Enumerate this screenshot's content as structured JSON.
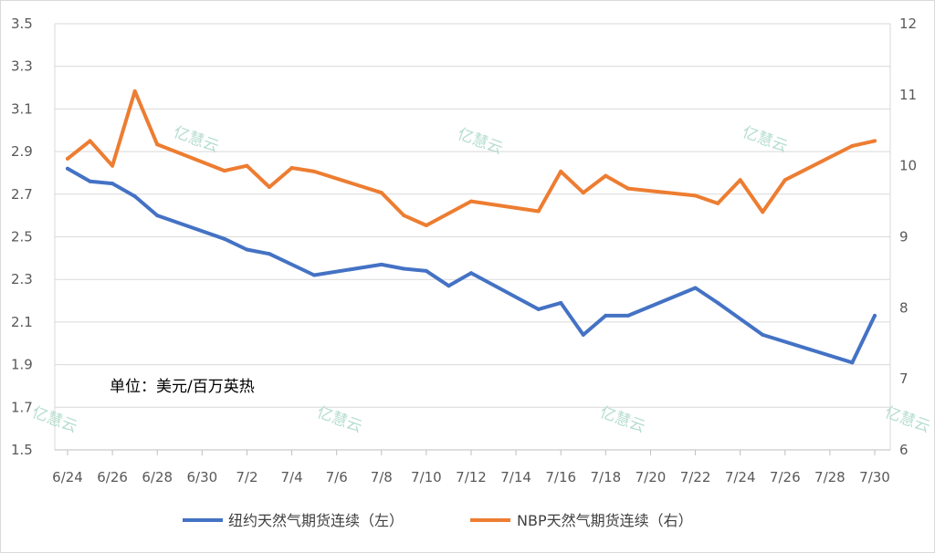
{
  "chart_data": {
    "type": "line",
    "annotation": "单位：美元/百万英热",
    "watermark_text": "亿慧云",
    "x_tick_labels": [
      "6/24",
      "6/26",
      "6/28",
      "6/30",
      "7/2",
      "7/4",
      "7/6",
      "7/8",
      "7/10",
      "7/12",
      "7/14",
      "7/16",
      "7/18",
      "7/20",
      "7/22",
      "7/24",
      "7/26",
      "7/28",
      "7/30"
    ],
    "y_left": {
      "ticks": [
        "1.5",
        "1.7",
        "1.9",
        "2.1",
        "2.3",
        "2.5",
        "2.7",
        "2.9",
        "3.1",
        "3.3",
        "3.5"
      ],
      "ylim": [
        1.5,
        3.5
      ]
    },
    "y_right": {
      "ticks": [
        "6",
        "7",
        "8",
        "9",
        "10",
        "11",
        "12"
      ],
      "ylim": [
        6,
        12
      ]
    },
    "x_range": [
      "6/24",
      "7/30"
    ],
    "series": [
      {
        "name": "纽约天然气期货连续（左）",
        "axis": "left",
        "color": "#4472c4",
        "x": [
          "6/24",
          "6/25",
          "6/26",
          "6/27",
          "6/28",
          "7/1",
          "7/2",
          "7/3",
          "7/5",
          "7/8",
          "7/9",
          "7/10",
          "7/11",
          "7/12",
          "7/15",
          "7/16",
          "7/17",
          "7/18",
          "7/19",
          "7/22",
          "7/23",
          "7/25",
          "7/29",
          "7/30"
        ],
        "values": [
          2.82,
          2.76,
          2.75,
          2.69,
          2.6,
          2.49,
          2.44,
          2.42,
          2.32,
          2.37,
          2.35,
          2.34,
          2.27,
          2.33,
          2.16,
          2.19,
          2.04,
          2.13,
          2.13,
          2.26,
          2.19,
          2.04,
          1.91,
          2.13
        ]
      },
      {
        "name": "NBP天然气期货连续（右）",
        "axis": "right",
        "color": "#ed7d31",
        "x": [
          "6/24",
          "6/25",
          "6/26",
          "6/27",
          "6/28",
          "7/1",
          "7/2",
          "7/3",
          "7/4",
          "7/5",
          "7/8",
          "7/9",
          "7/10",
          "7/12",
          "7/15",
          "7/16",
          "7/17",
          "7/18",
          "7/19",
          "7/22",
          "7/23",
          "7/24",
          "7/25",
          "7/26",
          "7/29",
          "7/30"
        ],
        "values": [
          10.1,
          10.35,
          10.0,
          11.05,
          10.3,
          9.93,
          10.0,
          9.7,
          9.97,
          9.92,
          9.62,
          9.3,
          9.16,
          9.5,
          9.36,
          9.92,
          9.62,
          9.86,
          9.68,
          9.58,
          9.47,
          9.8,
          9.35,
          9.8,
          10.28,
          10.35
        ]
      }
    ],
    "legend_position": "bottom-center",
    "grid": true
  }
}
